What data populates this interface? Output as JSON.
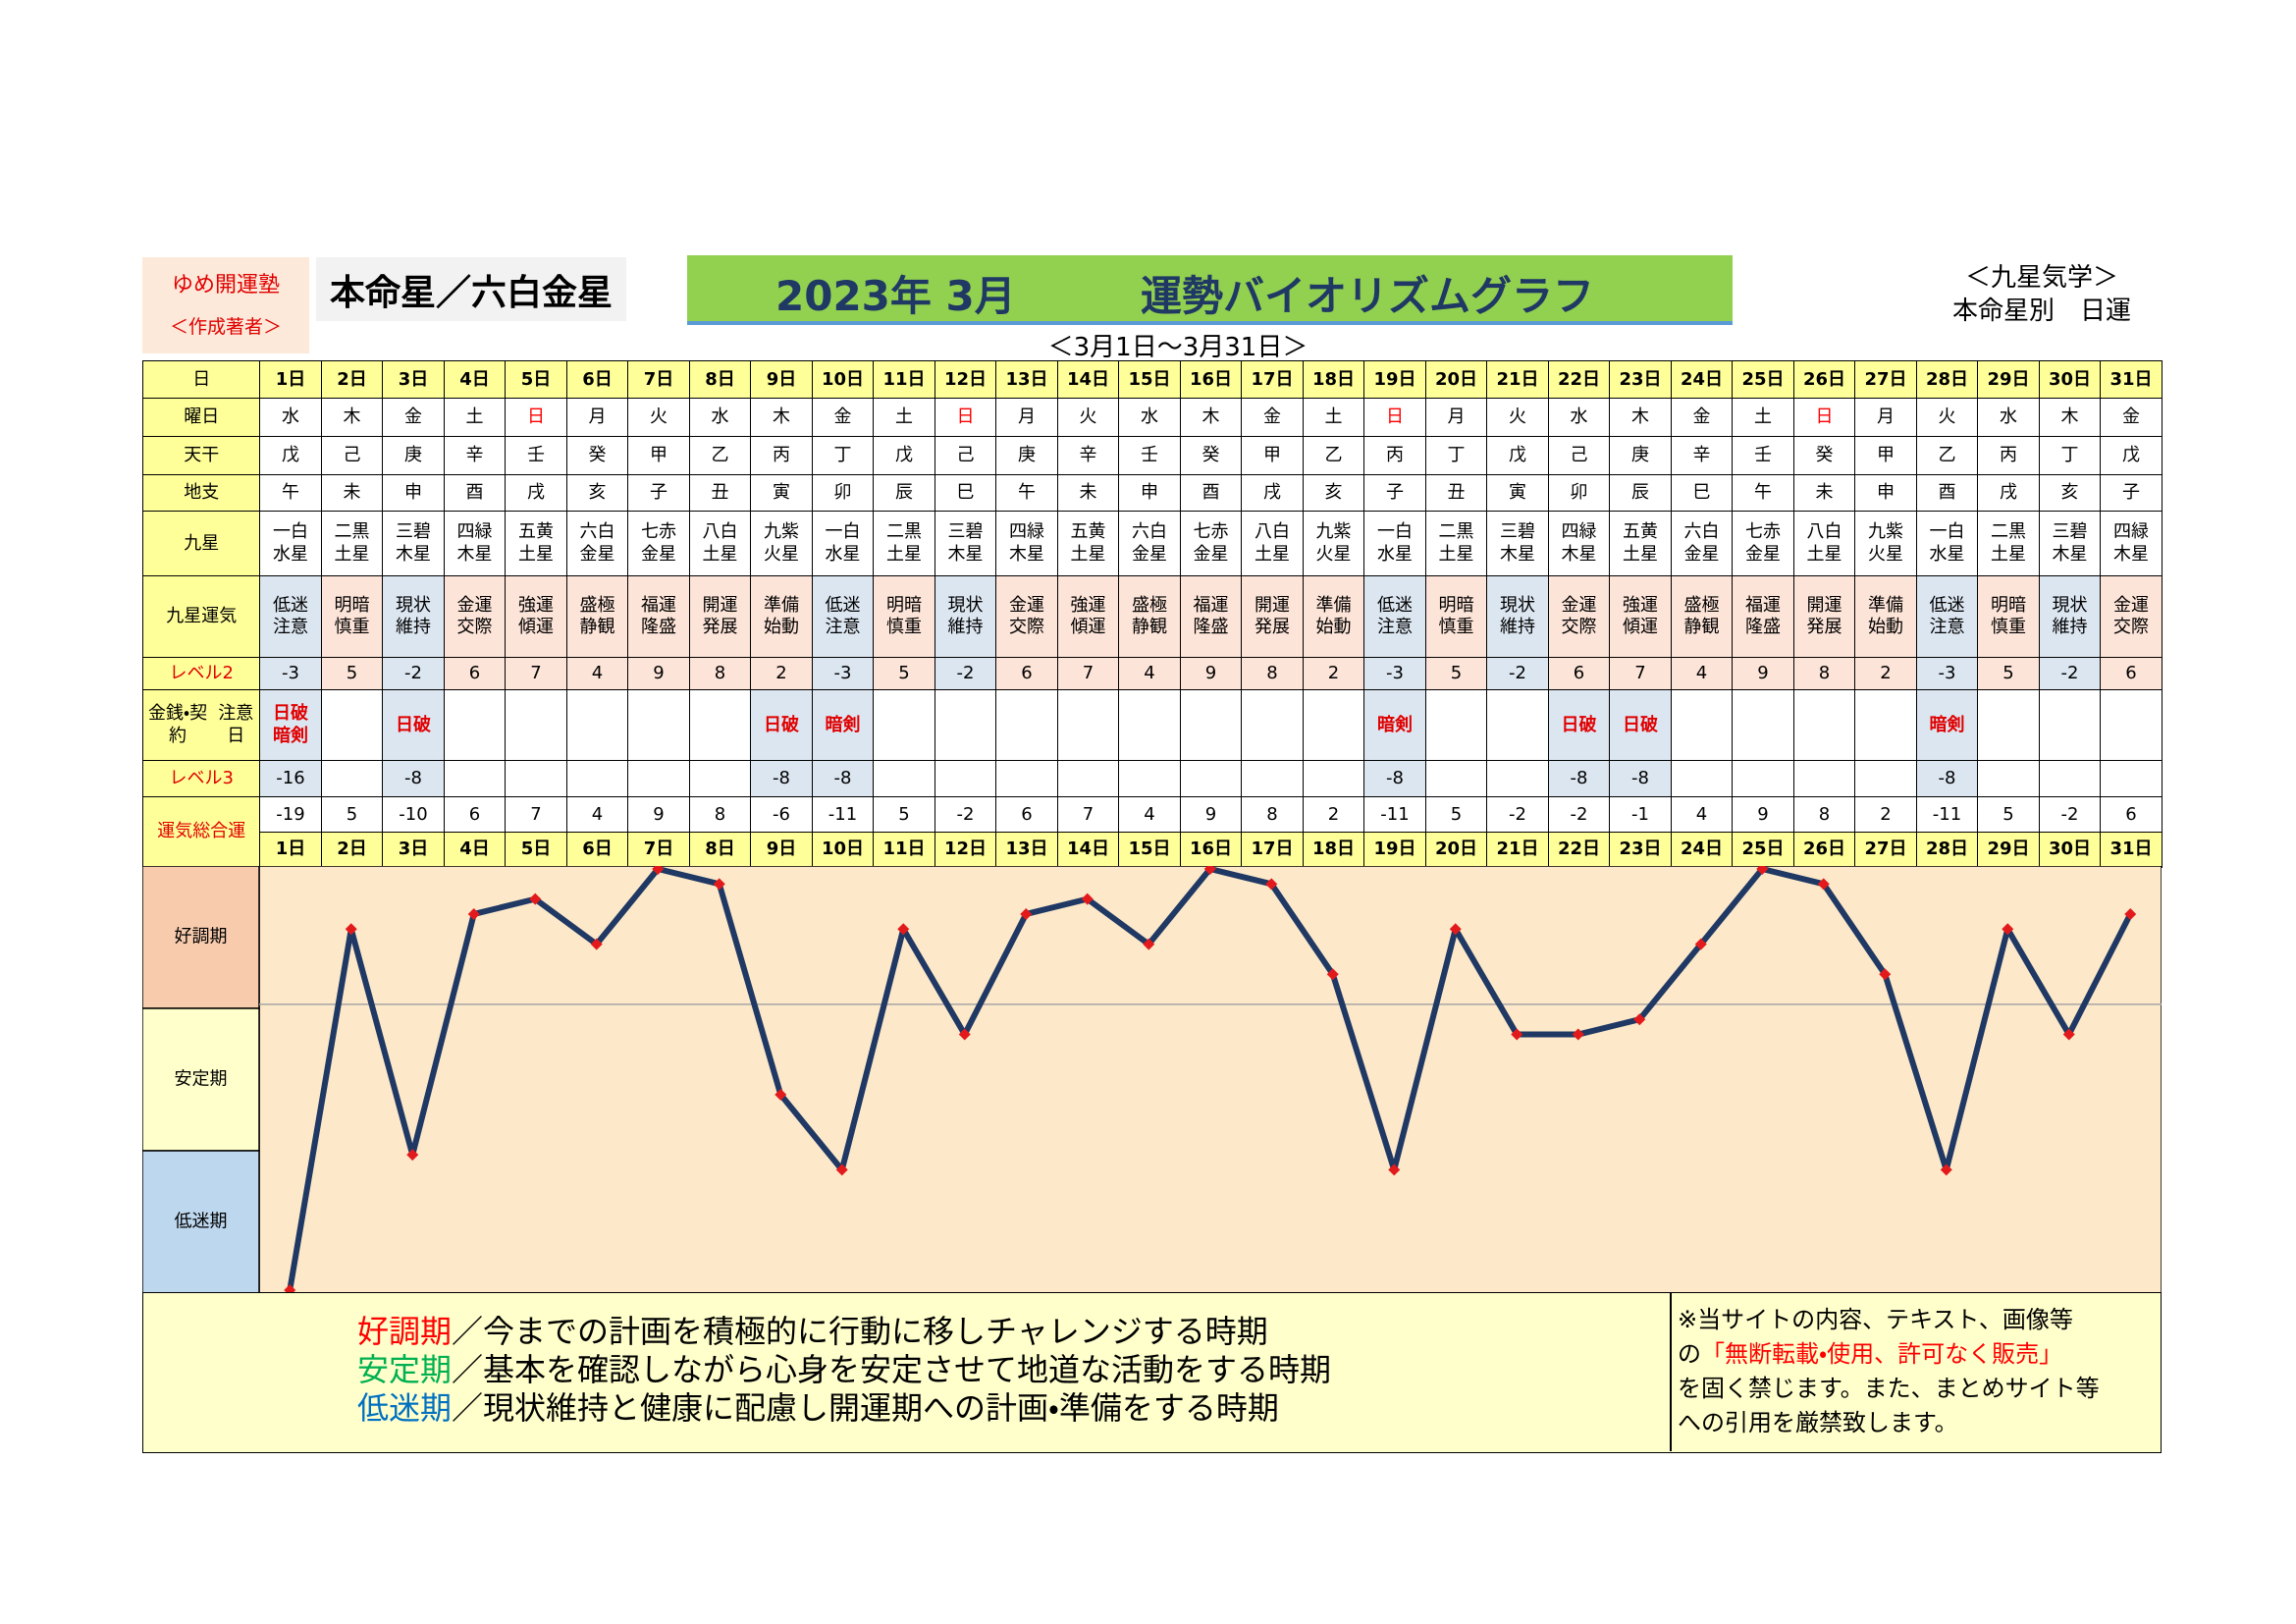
{
  "header": {
    "brand": "ゆめ開運塾",
    "author": "＜作成著者＞",
    "honmei": "本命星／六白金星",
    "title_date": "2023年 3月",
    "title": "運勢バイオリズムグラフ",
    "period": "＜3月1日～3月31日＞",
    "system": "＜九星気学＞",
    "subtitle": "本命星別　日運"
  },
  "table": {
    "row_labels": [
      {
        "lines": [
          "日"
        ],
        "color": "#000000"
      },
      {
        "lines": [
          "曜日"
        ],
        "color": "#000000"
      },
      {
        "lines": [
          "天干"
        ],
        "color": "#000000"
      },
      {
        "lines": [
          "地支"
        ],
        "color": "#000000"
      },
      {
        "lines": [
          "九星"
        ],
        "color": "#000000"
      },
      {
        "lines": [
          "九星",
          "運気"
        ],
        "color": "#000000"
      },
      {
        "lines": [
          "レベル2"
        ],
        "color": "#e00000"
      },
      {
        "lines": [
          "金銭・契約",
          "注意日"
        ],
        "color": "#000000"
      },
      {
        "lines": [
          "レベル3"
        ],
        "color": "#e00000"
      },
      {
        "lines": [
          "運気",
          "総合運"
        ],
        "color": "#e00000"
      }
    ],
    "weekday": [
      "水",
      "木",
      "金",
      "土",
      "日",
      "月",
      "火",
      "水",
      "木",
      "金",
      "土",
      "日",
      "月",
      "火",
      "水",
      "木",
      "金",
      "土",
      "日",
      "月",
      "火",
      "水",
      "木",
      "金",
      "土",
      "日",
      "月",
      "火",
      "水",
      "木",
      "金"
    ],
    "weekday_colors": [
      "#000000",
      "#000000",
      "#000000",
      "#000000",
      "#ff0000",
      "#000000",
      "#000000",
      "#000000",
      "#000000",
      "#000000",
      "#000000",
      "#ff0000",
      "#000000",
      "#000000",
      "#000000",
      "#000000",
      "#000000",
      "#000000",
      "#ff0000",
      "#000000",
      "#000000",
      "#000000",
      "#000000",
      "#000000",
      "#000000",
      "#ff0000",
      "#000000",
      "#000000",
      "#000000",
      "#000000",
      "#000000"
    ],
    "stem": [
      "戊",
      "己",
      "庚",
      "辛",
      "壬",
      "癸",
      "甲",
      "乙",
      "丙",
      "丁",
      "戊",
      "己",
      "庚",
      "辛",
      "壬",
      "癸",
      "甲",
      "乙",
      "丙",
      "丁",
      "戊",
      "己",
      "庚",
      "辛",
      "壬",
      "癸",
      "甲",
      "乙",
      "丙",
      "丁",
      "戊"
    ],
    "branch": [
      "午",
      "未",
      "申",
      "酉",
      "戌",
      "亥",
      "子",
      "丑",
      "寅",
      "卯",
      "辰",
      "巳",
      "午",
      "未",
      "申",
      "酉",
      "戌",
      "亥",
      "子",
      "丑",
      "寅",
      "卯",
      "辰",
      "巳",
      "午",
      "未",
      "申",
      "酉",
      "戌",
      "亥",
      "子"
    ],
    "star": [
      "一白水星",
      "二黒土星",
      "三碧木星",
      "四緑木星",
      "五黄土星",
      "六白金星",
      "七赤金星",
      "八白土星",
      "九紫火星",
      "一白水星",
      "二黒土星",
      "三碧木星",
      "四緑木星",
      "五黄土星",
      "六白金星",
      "七赤金星",
      "八白土星",
      "九紫火星",
      "一白水星",
      "二黒土星",
      "三碧木星",
      "四緑木星",
      "五黄土星",
      "六白金星",
      "七赤金星",
      "八白土星",
      "九紫火星",
      "一白水星",
      "二黒土星",
      "三碧木星",
      "四緑木星"
    ],
    "fortune": [
      "低迷注意",
      "明暗慎重",
      "現状維持",
      "金運交際",
      "強運傾運",
      "盛極静観",
      "福運隆盛",
      "開運発展",
      "準備始動",
      "低迷注意",
      "明暗慎重",
      "現状維持",
      "金運交際",
      "強運傾運",
      "盛極静観",
      "福運隆盛",
      "開運発展",
      "準備始動",
      "低迷注意",
      "明暗慎重",
      "現状維持",
      "金運交際",
      "強運傾運",
      "盛極静観",
      "福運隆盛",
      "開運発展",
      "準備始動",
      "低迷注意",
      "明暗慎重",
      "現状維持",
      "金運交際"
    ],
    "level2": [
      -3,
      5,
      -2,
      6,
      7,
      4,
      9,
      8,
      2,
      -3,
      5,
      -2,
      6,
      7,
      4,
      9,
      8,
      2,
      -3,
      5,
      -2,
      6,
      7,
      4,
      9,
      8,
      2,
      -3,
      5,
      -2,
      6
    ],
    "caution": [
      "日破暗剣",
      null,
      "日破",
      null,
      null,
      null,
      null,
      null,
      "日破",
      "暗剣",
      null,
      null,
      null,
      null,
      null,
      null,
      null,
      null,
      "暗剣",
      null,
      null,
      "日破",
      "日破",
      null,
      null,
      null,
      null,
      "暗剣",
      null,
      null,
      null
    ],
    "level3": [
      -16,
      null,
      -8,
      null,
      null,
      null,
      null,
      null,
      -8,
      -8,
      null,
      null,
      null,
      null,
      null,
      null,
      null,
      null,
      -8,
      null,
      null,
      -8,
      -8,
      null,
      null,
      null,
      null,
      -8,
      null,
      null,
      null
    ]
  },
  "chart_data": {
    "type": "line",
    "categories": [
      "1日",
      "2日",
      "3日",
      "4日",
      "5日",
      "6日",
      "7日",
      "8日",
      "9日",
      "10日",
      "11日",
      "12日",
      "13日",
      "14日",
      "15日",
      "16日",
      "17日",
      "18日",
      "19日",
      "20日",
      "21日",
      "22日",
      "23日",
      "24日",
      "25日",
      "26日",
      "27日",
      "28日",
      "29日",
      "30日",
      "31日"
    ],
    "values": [
      -19,
      5,
      -10,
      6,
      7,
      4,
      9,
      8,
      -6,
      -11,
      5,
      -2,
      6,
      7,
      4,
      9,
      8,
      2,
      -11,
      5,
      -2,
      -2,
      -1,
      4,
      9,
      8,
      2,
      -11,
      5,
      -2,
      6
    ],
    "ylim": [
      -19,
      9
    ],
    "color": "#1f3864",
    "marker_color": "#e31a1c",
    "background": "#fde9c9",
    "bands": [
      {
        "label": "好調期",
        "color": "#f8cbad"
      },
      {
        "label": "安定期",
        "color": "#ffffcc"
      },
      {
        "label": "低迷期",
        "color": "#bdd7ee"
      }
    ]
  },
  "legend": [
    {
      "term": "好調期",
      "text": "／今までの計画を積極的に行動に移しチャレンジする時期",
      "color": "#ff0000"
    },
    {
      "term": "安定期",
      "text": "／基本を確認しながら心身を安定させて地道な活動をする時期",
      "color": "#00b050"
    },
    {
      "term": "低迷期",
      "text": "／現状維持と健康に配慮し開運期への計画・準備をする時期",
      "color": "#0070c0"
    }
  ],
  "notice": [
    [
      {
        "text": "※当サイトの内容、テキスト、画像等",
        "color": "#000000"
      }
    ],
    [
      {
        "text": "の",
        "color": "#000000"
      },
      {
        "text": "「無断転載・使用、許可なく販売」",
        "color": "#ff0000"
      }
    ],
    [
      {
        "text": "を固く禁じます。また、まとめサイト等",
        "color": "#000000"
      }
    ],
    [
      {
        "text": "への引用を厳禁致します。",
        "color": "#000000"
      }
    ]
  ]
}
